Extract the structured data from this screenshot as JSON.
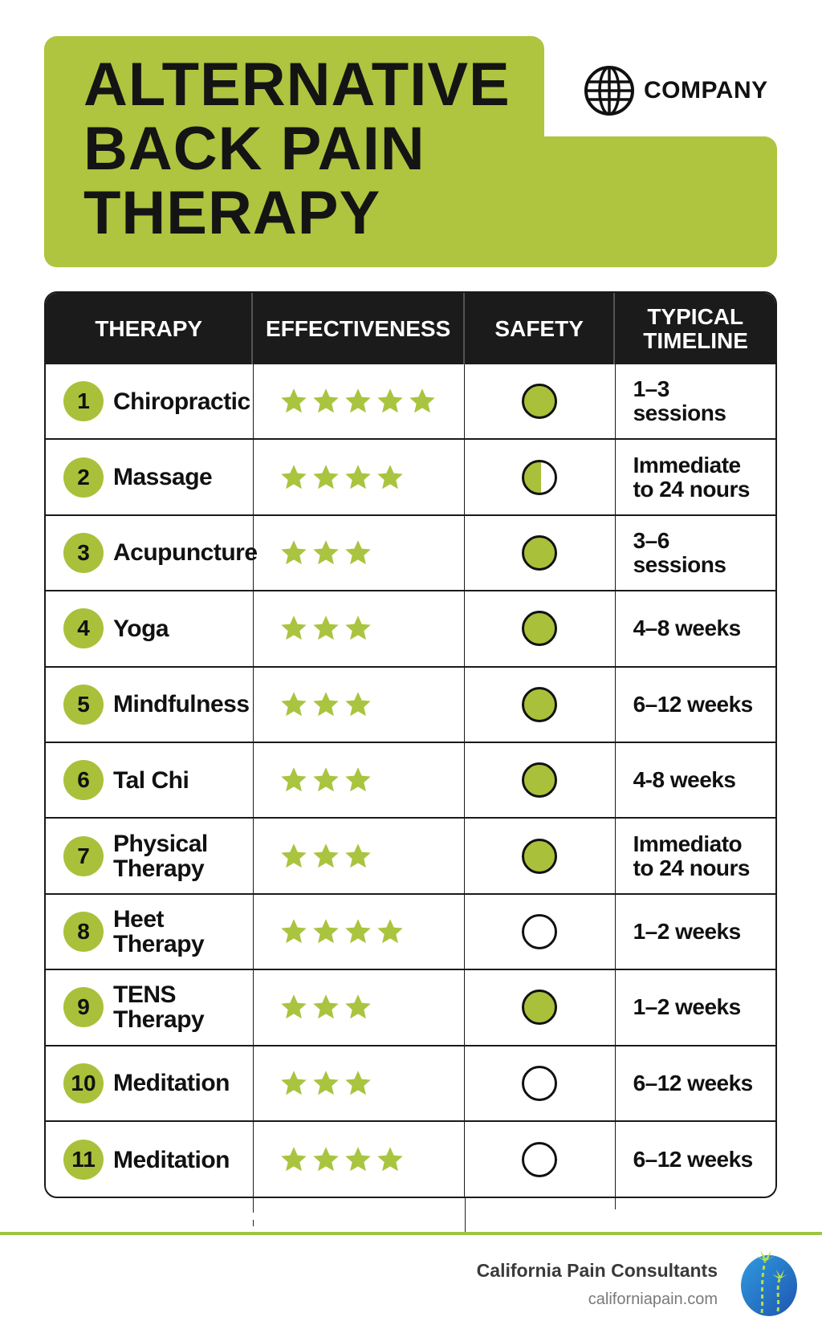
{
  "header": {
    "title_lines": [
      "ALTERNATIVE",
      "BACK PAIN",
      "THERAPY"
    ],
    "company_icon": "globe-icon",
    "company_label": "COMPANY"
  },
  "colors": {
    "accent_green": "#afc43f",
    "header_bg": "#1b1b1b",
    "logo_blue": "#2a7fd0"
  },
  "table": {
    "columns": [
      "THERAPY",
      "EFFECTIVENESS",
      "SAFETY",
      "TYPICAL TIMELINE"
    ],
    "rows": [
      {
        "number": "1",
        "therapy": "Chiropractic",
        "stars": 5,
        "safety": "full",
        "timeline": "1–3 sessions"
      },
      {
        "number": "2",
        "therapy": "Massage",
        "stars": 4,
        "safety": "half",
        "timeline": "Immediate to 24 nours"
      },
      {
        "number": "3",
        "therapy": "Acupuncture",
        "stars": 3,
        "safety": "full",
        "timeline": "3–6 sessions"
      },
      {
        "number": "4",
        "therapy": "Yoga",
        "stars": 3,
        "safety": "full",
        "timeline": "4–8 weeks"
      },
      {
        "number": "5",
        "therapy": "Mindfulness",
        "stars": 3,
        "safety": "full",
        "timeline": "6–12 weeks"
      },
      {
        "number": "6",
        "therapy": "Tal Chi",
        "stars": 3,
        "safety": "full",
        "timeline": "4-8 weeks"
      },
      {
        "number": "7",
        "therapy": "Physical Therapy",
        "stars": 3,
        "safety": "full",
        "timeline": "Immediato to 24 nours"
      },
      {
        "number": "8",
        "therapy": "Heet Therapy",
        "stars": 4,
        "safety": "empty",
        "timeline": "1–2 weeks"
      },
      {
        "number": "9",
        "therapy": "TENS Therapy",
        "stars": 3,
        "safety": "full",
        "timeline": "1–2 weeks"
      },
      {
        "number": "10",
        "therapy": "Meditation",
        "stars": 3,
        "safety": "empty",
        "timeline": "6–12 weeks"
      },
      {
        "number": "11",
        "therapy": "Meditation",
        "stars": 4,
        "safety": "empty",
        "timeline": "6–12 weeks"
      }
    ]
  },
  "footer": {
    "organization": "California Pain Consultants",
    "website": "californiapain.com",
    "logo_icon": "palm-tree-globe-logo"
  }
}
